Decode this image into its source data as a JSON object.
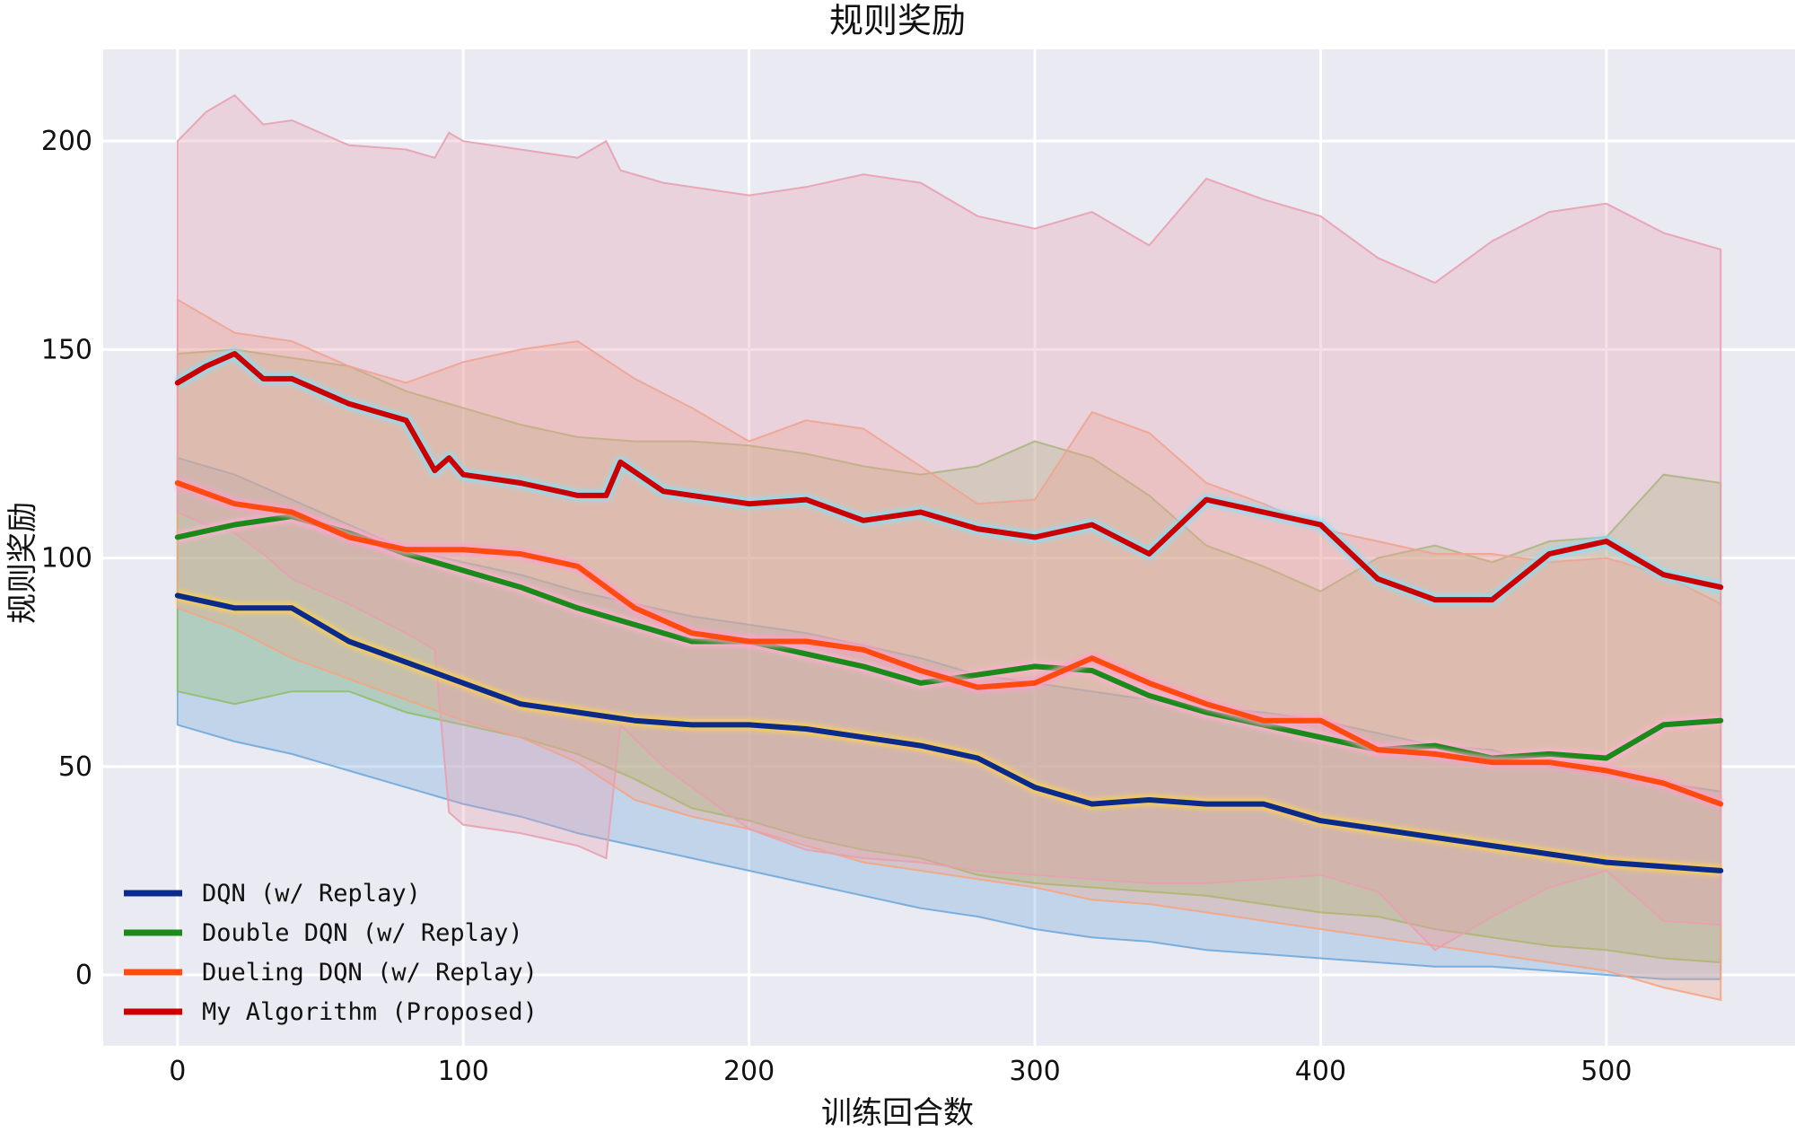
{
  "chart_data": {
    "type": "line",
    "title": "规则奖励",
    "xlabel": "训练回合数",
    "ylabel": "规则奖励",
    "xlim": [
      -26,
      566
    ],
    "ylim": [
      -17,
      222
    ],
    "xticks": [
      0,
      100,
      200,
      300,
      400,
      500
    ],
    "yticks": [
      0,
      50,
      100,
      150,
      200
    ],
    "grid": true,
    "background": "#eaeaf2",
    "legend_position": "lower-left",
    "series": [
      {
        "name": "DQN (w/ Replay)",
        "color": "#0a2a8c",
        "glow": "#ffd24d",
        "band_color": "#6fa8dc",
        "x": [
          0,
          20,
          40,
          60,
          80,
          100,
          120,
          140,
          160,
          180,
          200,
          220,
          240,
          260,
          280,
          300,
          320,
          340,
          360,
          380,
          400,
          420,
          440,
          460,
          480,
          500,
          520,
          540
        ],
        "mean": [
          91,
          88,
          88,
          80,
          75,
          70,
          65,
          63,
          61,
          60,
          60,
          59,
          57,
          55,
          52,
          45,
          41,
          42,
          41,
          41,
          37,
          35,
          33,
          31,
          29,
          27,
          26,
          25
        ],
        "upper": [
          124,
          120,
          114,
          108,
          102,
          99,
          96,
          92,
          89,
          86,
          84,
          82,
          79,
          76,
          72,
          70,
          68,
          66,
          64,
          63,
          61,
          58,
          55,
          54,
          50,
          48,
          46,
          44
        ],
        "lower": [
          60,
          56,
          53,
          49,
          45,
          41,
          38,
          34,
          31,
          28,
          25,
          22,
          19,
          16,
          14,
          11,
          9,
          8,
          6,
          5,
          4,
          3,
          2,
          2,
          1,
          0,
          -1,
          -1
        ]
      },
      {
        "name": "Double DQN (w/ Replay)",
        "color": "#1a8a1a",
        "glow": "#ffb0d0",
        "band_color": "#8fbf6a",
        "x": [
          0,
          20,
          40,
          60,
          80,
          100,
          120,
          140,
          160,
          180,
          200,
          220,
          240,
          260,
          280,
          300,
          320,
          340,
          360,
          380,
          400,
          420,
          440,
          460,
          480,
          500,
          520,
          540
        ],
        "mean": [
          105,
          108,
          110,
          106,
          101,
          97,
          93,
          88,
          84,
          80,
          80,
          77,
          74,
          70,
          72,
          74,
          73,
          67,
          63,
          60,
          57,
          54,
          55,
          52,
          53,
          52,
          60,
          61
        ],
        "upper": [
          149,
          150,
          148,
          146,
          140,
          136,
          132,
          129,
          128,
          128,
          127,
          125,
          122,
          120,
          122,
          128,
          124,
          115,
          103,
          98,
          92,
          100,
          103,
          99,
          104,
          105,
          120,
          118
        ],
        "lower": [
          68,
          65,
          68,
          68,
          63,
          60,
          57,
          53,
          47,
          40,
          37,
          33,
          30,
          28,
          24,
          22,
          21,
          20,
          19,
          17,
          15,
          14,
          11,
          9,
          7,
          6,
          4,
          3
        ]
      },
      {
        "name": "Dueling DQN (w/ Replay)",
        "color": "#ff4a10",
        "glow": "#ff9ec9",
        "band_color": "#f4a582",
        "x": [
          0,
          20,
          40,
          60,
          80,
          100,
          120,
          140,
          160,
          180,
          200,
          220,
          240,
          260,
          280,
          300,
          320,
          340,
          360,
          380,
          400,
          420,
          440,
          460,
          480,
          500,
          520,
          540
        ],
        "mean": [
          118,
          113,
          111,
          105,
          102,
          102,
          101,
          98,
          88,
          82,
          80,
          80,
          78,
          73,
          69,
          70,
          76,
          70,
          65,
          61,
          61,
          54,
          53,
          51,
          51,
          49,
          46,
          41
        ],
        "upper": [
          162,
          154,
          152,
          146,
          142,
          147,
          150,
          152,
          143,
          136,
          128,
          133,
          131,
          122,
          113,
          114,
          135,
          130,
          118,
          113,
          107,
          104,
          101,
          101,
          99,
          100,
          96,
          89
        ],
        "lower": [
          88,
          83,
          76,
          71,
          66,
          61,
          57,
          51,
          42,
          38,
          35,
          31,
          27,
          25,
          23,
          21,
          18,
          17,
          15,
          13,
          11,
          9,
          7,
          5,
          3,
          1,
          -3,
          -6
        ]
      },
      {
        "name": "My Algorithm (Proposed)",
        "color": "#cc0000",
        "glow": "#7fe3ff",
        "band_color": "#e8a0b0",
        "x": [
          0,
          10,
          20,
          30,
          40,
          60,
          80,
          90,
          95,
          100,
          120,
          140,
          150,
          155,
          170,
          200,
          220,
          240,
          260,
          280,
          300,
          320,
          340,
          360,
          380,
          400,
          420,
          440,
          460,
          480,
          500,
          520,
          540
        ],
        "mean": [
          142,
          146,
          149,
          143,
          143,
          137,
          133,
          121,
          124,
          120,
          118,
          115,
          115,
          123,
          116,
          113,
          114,
          109,
          111,
          107,
          105,
          108,
          101,
          114,
          111,
          108,
          95,
          90,
          90,
          101,
          104,
          96,
          93
        ],
        "upper": [
          200,
          207,
          211,
          204,
          205,
          199,
          198,
          196,
          202,
          200,
          198,
          196,
          200,
          193,
          190,
          187,
          189,
          192,
          190,
          182,
          179,
          183,
          175,
          191,
          186,
          182,
          172,
          166,
          176,
          183,
          185,
          178,
          174
        ],
        "lower": [
          111,
          108,
          106,
          101,
          95,
          89,
          82,
          78,
          39,
          36,
          34,
          31,
          28,
          60,
          50,
          35,
          30,
          28,
          27,
          25,
          24,
          23,
          22,
          22,
          23,
          24,
          20,
          6,
          14,
          21,
          25,
          13,
          12
        ]
      }
    ]
  }
}
